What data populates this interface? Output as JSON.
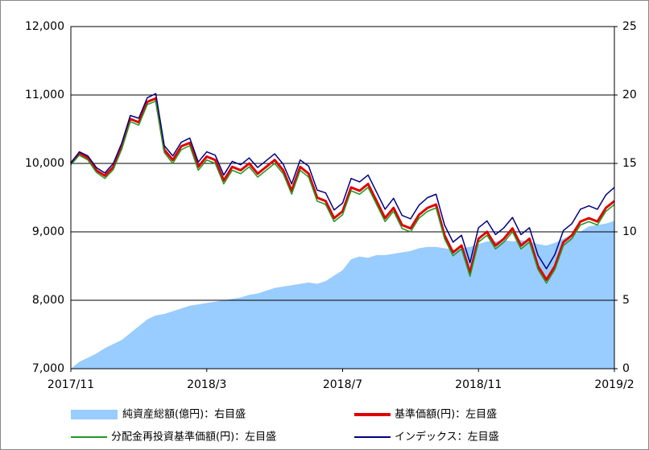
{
  "chart_data": {
    "type": "line",
    "categories": [
      "2017/11",
      null,
      null,
      null,
      null,
      null,
      null,
      null,
      null,
      null,
      null,
      null,
      null,
      null,
      null,
      null,
      "2018/3",
      null,
      null,
      null,
      null,
      null,
      null,
      null,
      null,
      null,
      null,
      null,
      null,
      null,
      null,
      null,
      "2018/7",
      null,
      null,
      null,
      null,
      null,
      null,
      null,
      null,
      null,
      null,
      null,
      null,
      null,
      null,
      null,
      "2018/11",
      null,
      null,
      null,
      null,
      null,
      null,
      null,
      null,
      null,
      null,
      null,
      null,
      null,
      null,
      null,
      "2019/2"
    ],
    "series": [
      {
        "name": "純資産総額(億円)：右目盛",
        "type": "area",
        "axis": "y2",
        "color": "#99ccff",
        "values": [
          0,
          0.5,
          0.8,
          1.1,
          1.5,
          1.8,
          2.1,
          2.6,
          3.1,
          3.6,
          3.9,
          4.0,
          4.2,
          4.4,
          4.6,
          4.7,
          4.8,
          4.9,
          5.0,
          5.1,
          5.2,
          5.4,
          5.5,
          5.7,
          5.9,
          6.0,
          6.1,
          6.2,
          6.3,
          6.2,
          6.4,
          6.8,
          7.2,
          8.0,
          8.2,
          8.1,
          8.3,
          8.3,
          8.4,
          8.5,
          8.6,
          8.8,
          8.9,
          8.9,
          8.8,
          8.7,
          8.8,
          8.9,
          9.1,
          9.3,
          9.3,
          9.4,
          9.3,
          9.4,
          9.3,
          9.1,
          9.0,
          9.2,
          9.5,
          9.8,
          10.0,
          10.4,
          10.5,
          10.6,
          10.8
        ]
      },
      {
        "name": "基準価額(円)：左目盛",
        "color": "#e00000",
        "values": [
          10000,
          10150,
          10080,
          9900,
          9820,
          9950,
          10250,
          10650,
          10600,
          10900,
          10950,
          10200,
          10050,
          10250,
          10300,
          9950,
          10100,
          10050,
          9750,
          9950,
          9900,
          10000,
          9850,
          9950,
          10050,
          9900,
          9600,
          9950,
          9850,
          9500,
          9450,
          9200,
          9300,
          9650,
          9600,
          9700,
          9450,
          9200,
          9350,
          9100,
          9050,
          9250,
          9350,
          9400,
          8950,
          8700,
          8800,
          8400,
          8900,
          9000,
          8800,
          8900,
          9050,
          8800,
          8900,
          8500,
          8300,
          8500,
          8850,
          8950,
          9150,
          9200,
          9150,
          9350,
          9450
        ]
      },
      {
        "name": "分配金再投資基準価額(円)：左目盛",
        "color": "#229922",
        "values": [
          9980,
          10120,
          10050,
          9870,
          9780,
          9910,
          10210,
          10610,
          10560,
          10860,
          10910,
          10160,
          10000,
          10200,
          10260,
          9900,
          10050,
          10000,
          9700,
          9900,
          9850,
          9950,
          9800,
          9900,
          10000,
          9850,
          9550,
          9900,
          9800,
          9450,
          9400,
          9150,
          9250,
          9600,
          9550,
          9650,
          9400,
          9150,
          9300,
          9050,
          9000,
          9200,
          9300,
          9350,
          8900,
          8650,
          8750,
          8350,
          8850,
          8950,
          8750,
          8850,
          9000,
          8750,
          8850,
          8450,
          8250,
          8450,
          8800,
          8900,
          9100,
          9150,
          9100,
          9300,
          9400
        ]
      },
      {
        "name": "インデックス：左目盛",
        "color": "#000080",
        "values": [
          10000,
          10170,
          10110,
          9940,
          9860,
          10000,
          10300,
          10700,
          10660,
          10960,
          11020,
          10260,
          10110,
          10310,
          10370,
          10020,
          10170,
          10120,
          9830,
          10030,
          9980,
          10080,
          9940,
          10040,
          10140,
          9990,
          9700,
          10050,
          9960,
          9610,
          9570,
          9320,
          9420,
          9780,
          9730,
          9830,
          9580,
          9330,
          9490,
          9240,
          9190,
          9390,
          9500,
          9550,
          9100,
          8850,
          8950,
          8550,
          9060,
          9160,
          8960,
          9060,
          9210,
          8960,
          9060,
          8660,
          8460,
          8670,
          9020,
          9120,
          9330,
          9380,
          9330,
          9540,
          9650
        ]
      }
    ],
    "ylim": [
      7000,
      12000
    ],
    "yticks": [
      {
        "value": 7000,
        "label": "7,000"
      },
      {
        "value": 8000,
        "label": "8,000"
      },
      {
        "value": 9000,
        "label": "9,000"
      },
      {
        "value": 10000,
        "label": "10,000"
      },
      {
        "value": 11000,
        "label": "11,000"
      },
      {
        "value": 12000,
        "label": "12,000"
      }
    ],
    "y2lim": [
      0,
      25
    ],
    "y2ticks": [
      0,
      5,
      10,
      15,
      20,
      25
    ],
    "grid": true,
    "legend": "bottom"
  }
}
